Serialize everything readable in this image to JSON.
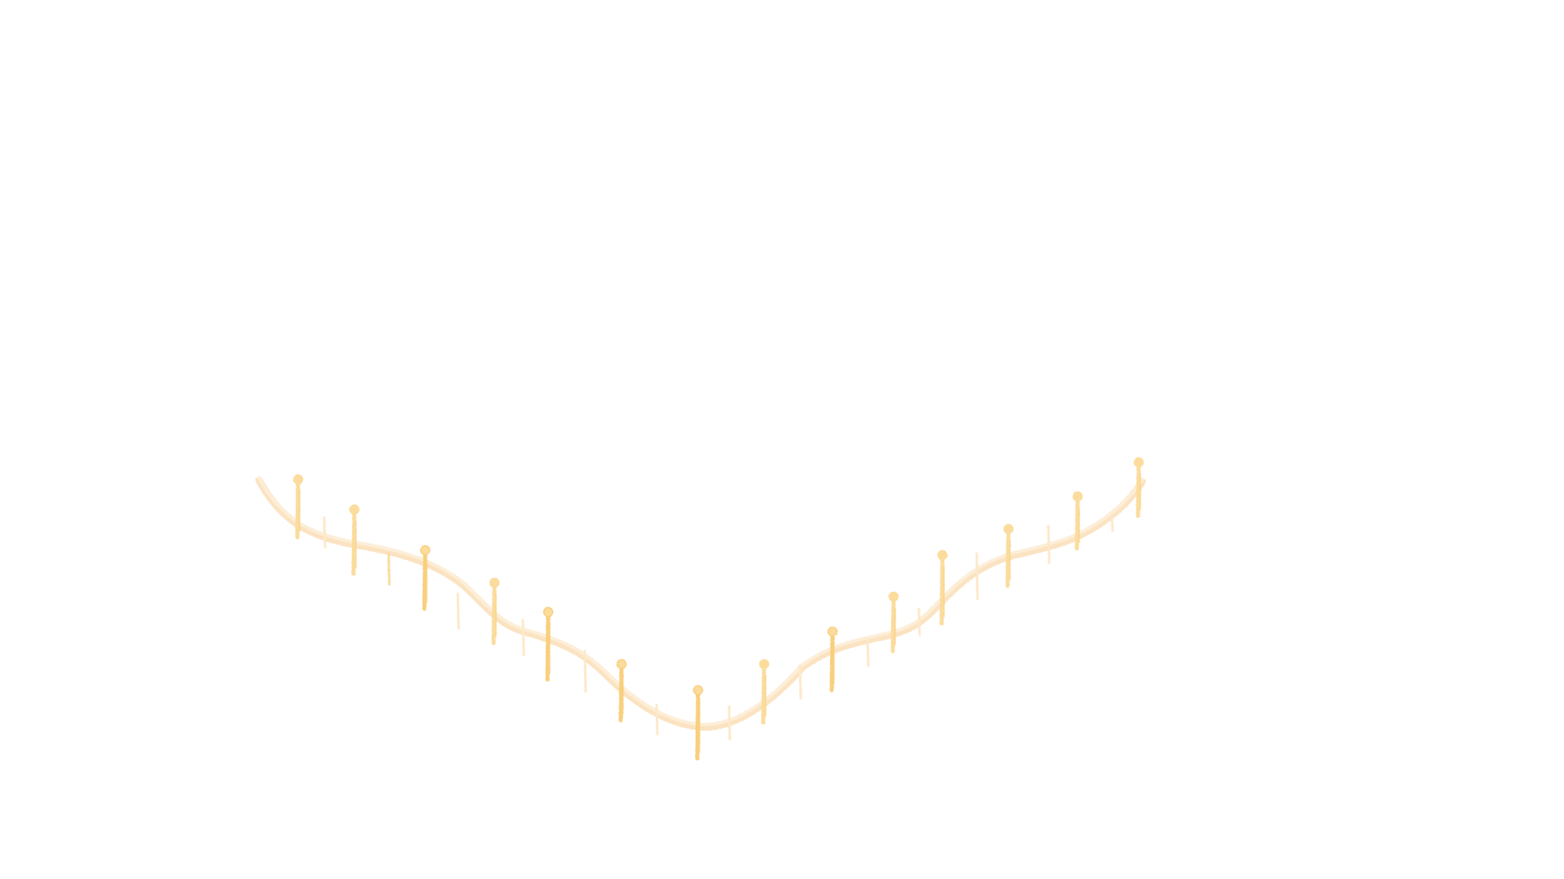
{
  "artwork": {
    "colors": {
      "background": "#ffffff",
      "garland_line": "#fbe3c2",
      "garland_line_soft": "#fdeed8",
      "light_strong": "#f9cf7d",
      "light_medium": "#fbdc9d",
      "light_pale": "#fde9c9"
    }
  }
}
